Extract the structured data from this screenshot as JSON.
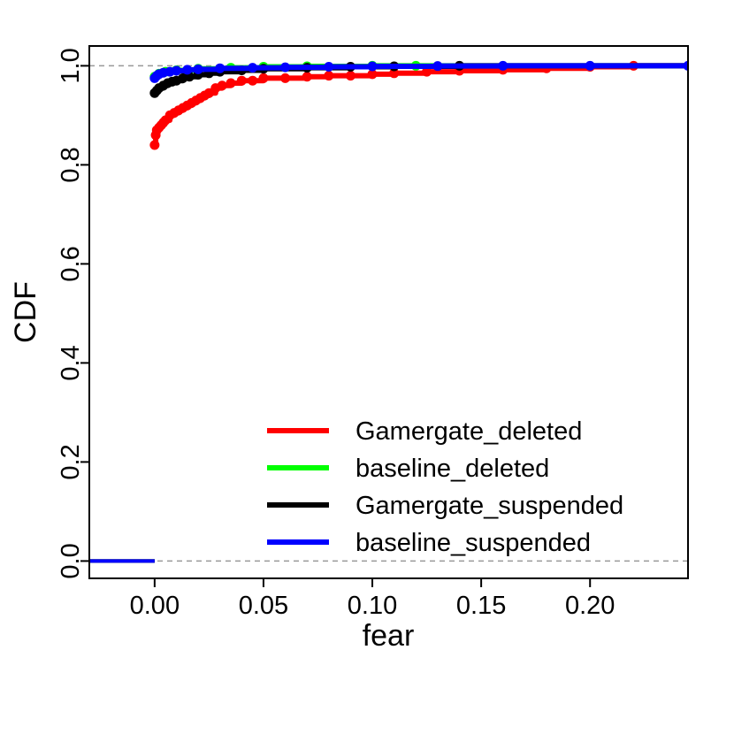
{
  "chart_data": {
    "type": "line",
    "title": "",
    "xlabel": "fear",
    "ylabel": "CDF",
    "xlim": [
      -0.03,
      0.245
    ],
    "ylim": [
      -0.035,
      1.04
    ],
    "xticks": [
      "0.00",
      "0.05",
      "0.10",
      "0.15",
      "0.20"
    ],
    "yticks": [
      "0.0",
      "0.2",
      "0.4",
      "0.6",
      "0.8",
      "1.0"
    ],
    "reference_lines": [
      0,
      1
    ],
    "legend_position": "bottom-right",
    "series": [
      {
        "name": "Gamergate_deleted",
        "color": "#ff0000",
        "x": [
          0.0,
          0.0005,
          0.001,
          0.002,
          0.003,
          0.004,
          0.005,
          0.007,
          0.009,
          0.011,
          0.013,
          0.015,
          0.017,
          0.019,
          0.021,
          0.023,
          0.025,
          0.028,
          0.031,
          0.035,
          0.04,
          0.045,
          0.05,
          0.06,
          0.07,
          0.08,
          0.09,
          0.1,
          0.11,
          0.125,
          0.14,
          0.16,
          0.18,
          0.2,
          0.22
        ],
        "y": [
          0.84,
          0.86,
          0.87,
          0.875,
          0.88,
          0.885,
          0.89,
          0.9,
          0.905,
          0.91,
          0.915,
          0.92,
          0.925,
          0.93,
          0.935,
          0.94,
          0.945,
          0.955,
          0.96,
          0.965,
          0.97,
          0.97,
          0.975,
          0.975,
          0.978,
          0.98,
          0.98,
          0.983,
          0.985,
          0.988,
          0.99,
          0.992,
          0.995,
          0.998,
          1.0
        ]
      },
      {
        "name": "baseline_deleted",
        "color": "#00ff00",
        "x": [
          0.0,
          0.002,
          0.005,
          0.01,
          0.02,
          0.035,
          0.05,
          0.07,
          0.1,
          0.12
        ],
        "y": [
          0.978,
          0.984,
          0.988,
          0.991,
          0.994,
          0.996,
          0.998,
          0.999,
          1.0,
          1.0
        ]
      },
      {
        "name": "Gamergate_suspended",
        "color": "#000000",
        "x": [
          0.0,
          0.001,
          0.002,
          0.004,
          0.006,
          0.008,
          0.01,
          0.013,
          0.016,
          0.02,
          0.025,
          0.03,
          0.04,
          0.05,
          0.07,
          0.09,
          0.11,
          0.14
        ],
        "y": [
          0.945,
          0.95,
          0.955,
          0.96,
          0.965,
          0.968,
          0.97,
          0.975,
          0.978,
          0.982,
          0.985,
          0.988,
          0.991,
          0.994,
          0.996,
          0.998,
          0.999,
          1.0
        ]
      },
      {
        "name": "baseline_suspended",
        "color": "#0000ff",
        "x": [
          0.0,
          0.001,
          0.002,
          0.004,
          0.007,
          0.01,
          0.015,
          0.02,
          0.03,
          0.045,
          0.06,
          0.08,
          0.1,
          0.13,
          0.16,
          0.2,
          0.245
        ],
        "y": [
          0.975,
          0.98,
          0.983,
          0.986,
          0.988,
          0.99,
          0.992,
          0.993,
          0.995,
          0.996,
          0.997,
          0.998,
          0.999,
          0.9995,
          1.0,
          1.0,
          1.0
        ]
      }
    ]
  }
}
